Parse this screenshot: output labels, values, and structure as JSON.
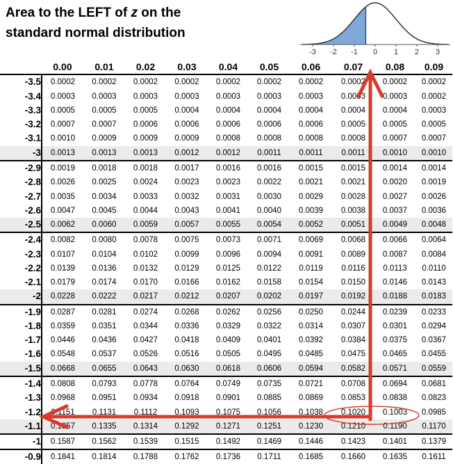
{
  "title": {
    "line1_before": "Area to the LEFT of ",
    "line1_var": "z",
    "line1_after": " on the",
    "line2": "standard normal distribution"
  },
  "curve_axis": [
    "-3",
    "-2",
    "-1",
    "0",
    "1",
    "2",
    "3"
  ],
  "colors": {
    "shade": "#7fa8d6",
    "arrow": "#d93b2b",
    "highlight_row": "#ebebeb"
  },
  "columns": [
    "0.00",
    "0.01",
    "0.02",
    "0.03",
    "0.04",
    "0.05",
    "0.06",
    "0.07",
    "0.08",
    "0.09"
  ],
  "rows": [
    {
      "z": "-3.5",
      "vals": [
        "0.0002",
        "0.0002",
        "0.0002",
        "0.0002",
        "0.0002",
        "0.0002",
        "0.0002",
        "0.0002",
        "0.0002",
        "0.0002"
      ]
    },
    {
      "z": "-3.4",
      "vals": [
        "0.0003",
        "0.0003",
        "0.0003",
        "0.0003",
        "0.0003",
        "0.0003",
        "0.0003",
        "0.0003",
        "0.0003",
        "0.0002"
      ]
    },
    {
      "z": "-3.3",
      "vals": [
        "0.0005",
        "0.0005",
        "0.0005",
        "0.0004",
        "0.0004",
        "0.0004",
        "0.0004",
        "0.0004",
        "0.0004",
        "0.0003"
      ]
    },
    {
      "z": "-3.2",
      "vals": [
        "0.0007",
        "0.0007",
        "0.0006",
        "0.0006",
        "0.0006",
        "0.0006",
        "0.0006",
        "0.0005",
        "0.0005",
        "0.0005"
      ]
    },
    {
      "z": "-3.1",
      "vals": [
        "0.0010",
        "0.0009",
        "0.0009",
        "0.0009",
        "0.0008",
        "0.0008",
        "0.0008",
        "0.0008",
        "0.0007",
        "0.0007"
      ]
    },
    {
      "z": "-3",
      "vals": [
        "0.0013",
        "0.0013",
        "0.0013",
        "0.0012",
        "0.0012",
        "0.0011",
        "0.0011",
        "0.0011",
        "0.0010",
        "0.0010"
      ]
    },
    {
      "z": "-2.9",
      "vals": [
        "0.0019",
        "0.0018",
        "0.0018",
        "0.0017",
        "0.0016",
        "0.0016",
        "0.0015",
        "0.0015",
        "0.0014",
        "0.0014"
      ]
    },
    {
      "z": "-2.8",
      "vals": [
        "0.0026",
        "0.0025",
        "0.0024",
        "0.0023",
        "0.0023",
        "0.0022",
        "0.0021",
        "0.0021",
        "0.0020",
        "0.0019"
      ]
    },
    {
      "z": "-2.7",
      "vals": [
        "0.0035",
        "0.0034",
        "0.0033",
        "0.0032",
        "0.0031",
        "0.0030",
        "0.0029",
        "0.0028",
        "0.0027",
        "0.0026"
      ]
    },
    {
      "z": "-2.6",
      "vals": [
        "0.0047",
        "0.0045",
        "0.0044",
        "0.0043",
        "0.0041",
        "0.0040",
        "0.0039",
        "0.0038",
        "0.0037",
        "0.0036"
      ]
    },
    {
      "z": "-2.5",
      "vals": [
        "0.0062",
        "0.0060",
        "0.0059",
        "0.0057",
        "0.0055",
        "0.0054",
        "0.0052",
        "0.0051",
        "0.0049",
        "0.0048"
      ]
    },
    {
      "z": "-2.4",
      "vals": [
        "0.0082",
        "0.0080",
        "0.0078",
        "0.0075",
        "0.0073",
        "0.0071",
        "0.0069",
        "0.0068",
        "0.0066",
        "0.0064"
      ]
    },
    {
      "z": "-2.3",
      "vals": [
        "0.0107",
        "0.0104",
        "0.0102",
        "0.0099",
        "0.0096",
        "0.0094",
        "0.0091",
        "0.0089",
        "0.0087",
        "0.0084"
      ]
    },
    {
      "z": "-2.2",
      "vals": [
        "0.0139",
        "0.0136",
        "0.0132",
        "0.0129",
        "0.0125",
        "0.0122",
        "0.0119",
        "0.0116",
        "0.0113",
        "0.0110"
      ]
    },
    {
      "z": "-2.1",
      "vals": [
        "0.0179",
        "0.0174",
        "0.0170",
        "0.0166",
        "0.0162",
        "0.0158",
        "0.0154",
        "0.0150",
        "0.0146",
        "0.0143"
      ]
    },
    {
      "z": "-2",
      "vals": [
        "0.0228",
        "0.0222",
        "0.0217",
        "0.0212",
        "0.0207",
        "0.0202",
        "0.0197",
        "0.0192",
        "0.0188",
        "0.0183"
      ]
    },
    {
      "z": "-1.9",
      "vals": [
        "0.0287",
        "0.0281",
        "0.0274",
        "0.0268",
        "0.0262",
        "0.0256",
        "0.0250",
        "0.0244",
        "0.0239",
        "0.0233"
      ]
    },
    {
      "z": "-1.8",
      "vals": [
        "0.0359",
        "0.0351",
        "0.0344",
        "0.0336",
        "0.0329",
        "0.0322",
        "0.0314",
        "0.0307",
        "0.0301",
        "0.0294"
      ]
    },
    {
      "z": "-1.7",
      "vals": [
        "0.0446",
        "0.0436",
        "0.0427",
        "0.0418",
        "0.0409",
        "0.0401",
        "0.0392",
        "0.0384",
        "0.0375",
        "0.0367"
      ]
    },
    {
      "z": "-1.6",
      "vals": [
        "0.0548",
        "0.0537",
        "0.0526",
        "0.0516",
        "0.0505",
        "0.0495",
        "0.0485",
        "0.0475",
        "0.0465",
        "0.0455"
      ]
    },
    {
      "z": "-1.5",
      "vals": [
        "0.0668",
        "0.0655",
        "0.0643",
        "0.0630",
        "0.0618",
        "0.0606",
        "0.0594",
        "0.0582",
        "0.0571",
        "0.0559"
      ]
    },
    {
      "z": "-1.4",
      "vals": [
        "0.0808",
        "0.0793",
        "0.0778",
        "0.0764",
        "0.0749",
        "0.0735",
        "0.0721",
        "0.0708",
        "0.0694",
        "0.0681"
      ]
    },
    {
      "z": "-1.3",
      "vals": [
        "0.0968",
        "0.0951",
        "0.0934",
        "0.0918",
        "0.0901",
        "0.0885",
        "0.0869",
        "0.0853",
        "0.0838",
        "0.0823"
      ]
    },
    {
      "z": "-1.2",
      "vals": [
        "0.1151",
        "0.1131",
        "0.1112",
        "0.1093",
        "0.1075",
        "0.1056",
        "0.1038",
        "0.1020",
        "0.1003",
        "0.0985"
      ]
    },
    {
      "z": "-1.1",
      "vals": [
        "0.1357",
        "0.1335",
        "0.1314",
        "0.1292",
        "0.1271",
        "0.1251",
        "0.1230",
        "0.1210",
        "0.1190",
        "0.1170"
      ]
    },
    {
      "z": "-1",
      "vals": [
        "0.1587",
        "0.1562",
        "0.1539",
        "0.1515",
        "0.1492",
        "0.1469",
        "0.1446",
        "0.1423",
        "0.1401",
        "0.1379"
      ]
    },
    {
      "z": "-0.9",
      "vals": [
        "0.1841",
        "0.1814",
        "0.1788",
        "0.1762",
        "0.1736",
        "0.1711",
        "0.1685",
        "0.1660",
        "0.1635",
        "0.1611"
      ]
    }
  ]
}
